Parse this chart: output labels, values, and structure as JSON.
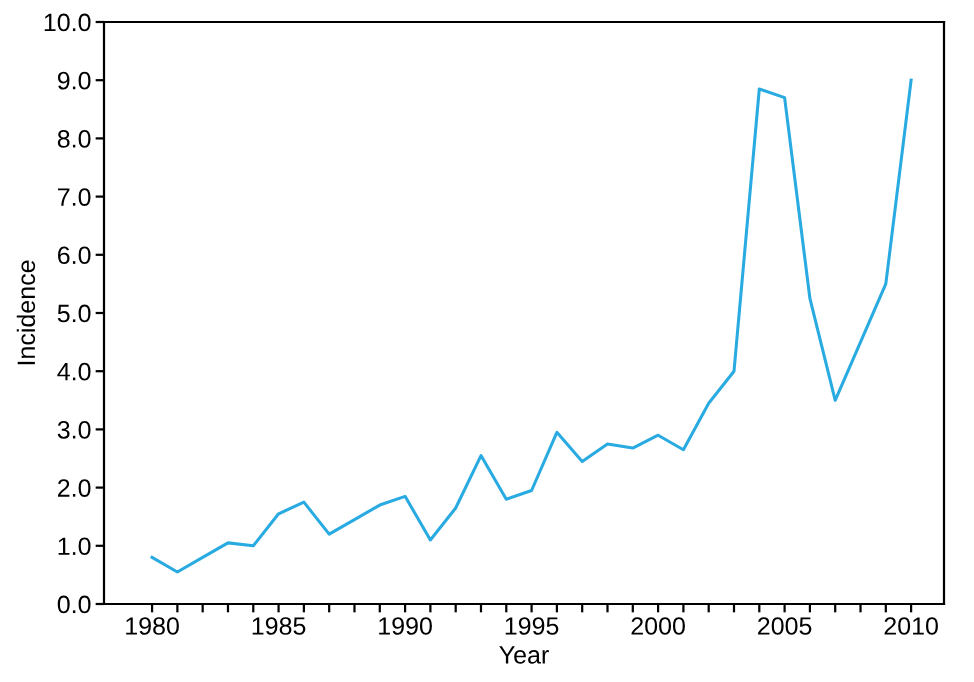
{
  "chart_data": {
    "type": "line",
    "xlabel": "Year",
    "ylabel": "Incidence",
    "x": [
      1980,
      1981,
      1982,
      1983,
      1984,
      1985,
      1986,
      1987,
      1988,
      1989,
      1990,
      1991,
      1992,
      1993,
      1994,
      1995,
      1996,
      1997,
      1998,
      1999,
      2000,
      2001,
      2002,
      2003,
      2004,
      2005,
      2006,
      2007,
      2008,
      2009,
      2010
    ],
    "series": [
      {
        "color": "#29abe2",
        "values": [
          0.8,
          0.55,
          0.8,
          1.05,
          1.0,
          1.55,
          1.75,
          1.2,
          1.45,
          1.7,
          1.85,
          1.1,
          1.65,
          2.55,
          1.8,
          1.95,
          2.95,
          2.45,
          2.75,
          2.68,
          2.9,
          2.65,
          3.45,
          4.0,
          8.85,
          8.7,
          5.25,
          3.5,
          4.5,
          5.5,
          9.0
        ]
      }
    ],
    "xlim": [
      1978.1,
      2011.3
    ],
    "xticks": [
      1980,
      {
        "value": 1981,
        "label": null
      },
      {
        "value": 1982,
        "label": null
      },
      {
        "value": 1983,
        "label": null
      },
      {
        "value": 1984,
        "label": null
      },
      1985,
      {
        "value": 1986,
        "label": null
      },
      {
        "value": 1987,
        "label": null
      },
      {
        "value": 1988,
        "label": null
      },
      {
        "value": 1989,
        "label": null
      },
      1990,
      {
        "value": 1991,
        "label": null
      },
      {
        "value": 1992,
        "label": null
      },
      {
        "value": 1993,
        "label": null
      },
      {
        "value": 1994,
        "label": null
      },
      1995,
      {
        "value": 1996,
        "label": null
      },
      {
        "value": 1997,
        "label": null
      },
      {
        "value": 1998,
        "label": null
      },
      {
        "value": 1999,
        "label": null
      },
      2000,
      {
        "value": 2001,
        "label": null
      },
      {
        "value": 2002,
        "label": null
      },
      {
        "value": 2003,
        "label": null
      },
      {
        "value": 2004,
        "label": null
      },
      2005,
      {
        "value": 2006,
        "label": null
      },
      {
        "value": 2007,
        "label": null
      },
      {
        "value": 2008,
        "label": null
      },
      {
        "value": 2009,
        "label": null
      },
      2010
    ],
    "ylim": [
      0,
      10
    ],
    "yticks": [
      {
        "value": 0,
        "label": "0.0"
      },
      {
        "value": 1,
        "label": "1.0"
      },
      {
        "value": 2,
        "label": "2.0"
      },
      {
        "value": 3,
        "label": "3.0"
      },
      {
        "value": 4,
        "label": "4.0"
      },
      {
        "value": 5,
        "label": "5.0"
      },
      {
        "value": 6,
        "label": "6.0"
      },
      {
        "value": 7,
        "label": "7.0"
      },
      {
        "value": 8,
        "label": "8.0"
      },
      {
        "value": 9,
        "label": "9.0"
      },
      {
        "value": 10,
        "label": "10.0"
      }
    ]
  }
}
